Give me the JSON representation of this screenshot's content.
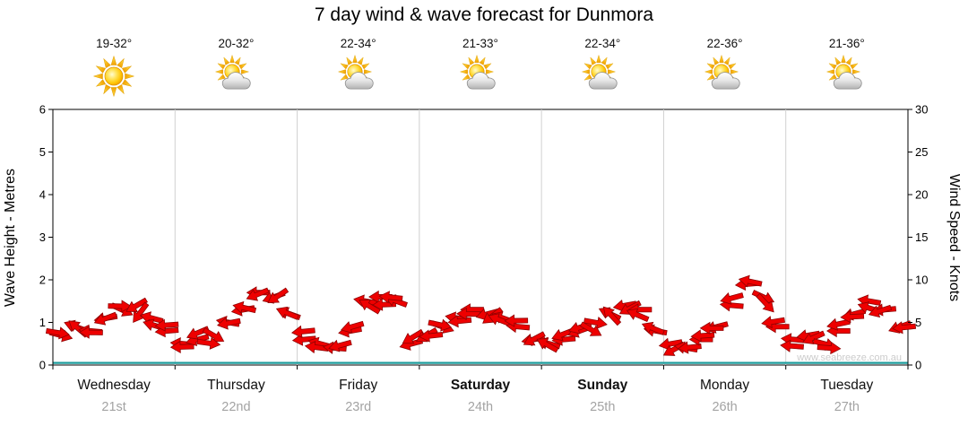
{
  "title": "7 day wind & wave forecast for Dunmora",
  "watermark": "www.seabreeze.com.au",
  "axes": {
    "left_label": "Wave Height - Metres",
    "right_label": "Wind Speed - Knots",
    "left_ticks": [
      0,
      1,
      2,
      3,
      4,
      5,
      6
    ],
    "right_ticks": [
      0,
      5,
      10,
      15,
      20,
      25,
      30
    ]
  },
  "days": [
    {
      "name": "Wednesday",
      "date": "21st",
      "temp": "19-32°",
      "icon": "sunny",
      "weekend": false
    },
    {
      "name": "Thursday",
      "date": "22nd",
      "temp": "20-32°",
      "icon": "partly-cloudy",
      "weekend": false
    },
    {
      "name": "Friday",
      "date": "23rd",
      "temp": "22-34°",
      "icon": "partly-cloudy",
      "weekend": false
    },
    {
      "name": "Saturday",
      "date": "24th",
      "temp": "21-33°",
      "icon": "partly-cloudy",
      "weekend": true
    },
    {
      "name": "Sunday",
      "date": "25th",
      "temp": "22-34°",
      "icon": "partly-cloudy",
      "weekend": true
    },
    {
      "name": "Monday",
      "date": "26th",
      "temp": "22-36°",
      "icon": "partly-cloudy",
      "weekend": false
    },
    {
      "name": "Tuesday",
      "date": "27th",
      "temp": "21-36°",
      "icon": "partly-cloudy",
      "weekend": false
    }
  ],
  "chart_data": {
    "type": "scatter",
    "subtype": "wind-direction-arrows",
    "title": "7 day wind & wave forecast for Dunmora",
    "ylabel_left": "Wave Height - Metres",
    "ylabel_right": "Wind Speed - Knots",
    "ylim_left": [
      0,
      6
    ],
    "ylim_right": [
      0,
      30
    ],
    "grid": "vertical-day-boundaries",
    "x_categories": [
      "Wednesday 21st",
      "Thursday 22nd",
      "Friday 23rd",
      "Saturday 24th",
      "Sunday 25th",
      "Monday 26th",
      "Tuesday 27th"
    ],
    "points_per_day": 8,
    "time_step_hours": 3,
    "wind": {
      "arrow_color": "#ee0000",
      "speeds_knots": [
        3.5,
        4.5,
        4,
        5.5,
        6.5,
        7,
        5.5,
        4,
        2.5,
        3,
        3.5,
        5,
        6.5,
        8.5,
        8,
        6,
        3,
        2.5,
        2,
        4,
        7.5,
        8,
        7.5,
        2.5,
        3.5,
        4.5,
        5.5,
        6.5,
        6,
        5.5,
        4.5,
        3,
        2.5,
        3,
        4,
        5,
        6,
        7,
        6.5,
        4,
        2.5,
        2,
        3,
        4.5,
        7,
        9.5,
        8,
        4.5,
        3,
        3.5,
        2.5,
        4,
        6,
        7.5,
        6.5,
        4.5
      ],
      "directions_deg": [
        15,
        200,
        185,
        170,
        25,
        150,
        195,
        175,
        185,
        165,
        30,
        190,
        170,
        180,
        160,
        200,
        175,
        195,
        185,
        170,
        190,
        180,
        200,
        165,
        150,
        20,
        190,
        180,
        165,
        200,
        185,
        170,
        195,
        175,
        160,
        10,
        205,
        170,
        180,
        190,
        170,
        190,
        180,
        165,
        185,
        175,
        25,
        180,
        185,
        170,
        15,
        180,
        165,
        190,
        175,
        160
      ]
    },
    "wave": {
      "height_m": 0.05,
      "color": "#1f9e9e"
    }
  }
}
